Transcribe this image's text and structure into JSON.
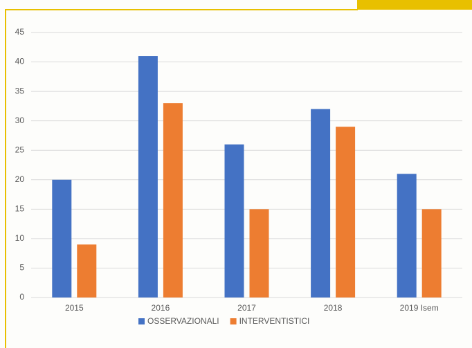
{
  "chart_data": {
    "type": "bar",
    "categories": [
      "2015",
      "2016",
      "2017",
      "2018",
      "2019 Isem"
    ],
    "series": [
      {
        "name": "OSSERVAZIONALI",
        "color": "#4472c4",
        "values": [
          20,
          41,
          26,
          32,
          21
        ]
      },
      {
        "name": "INTERVENTISTICI",
        "color": "#ed7d31",
        "values": [
          9,
          33,
          15,
          29,
          15
        ]
      }
    ],
    "ylim": [
      0,
      45
    ],
    "yticks": [
      0,
      5,
      10,
      15,
      20,
      25,
      30,
      35,
      40,
      45
    ],
    "grid": true,
    "legend": "bottom"
  }
}
